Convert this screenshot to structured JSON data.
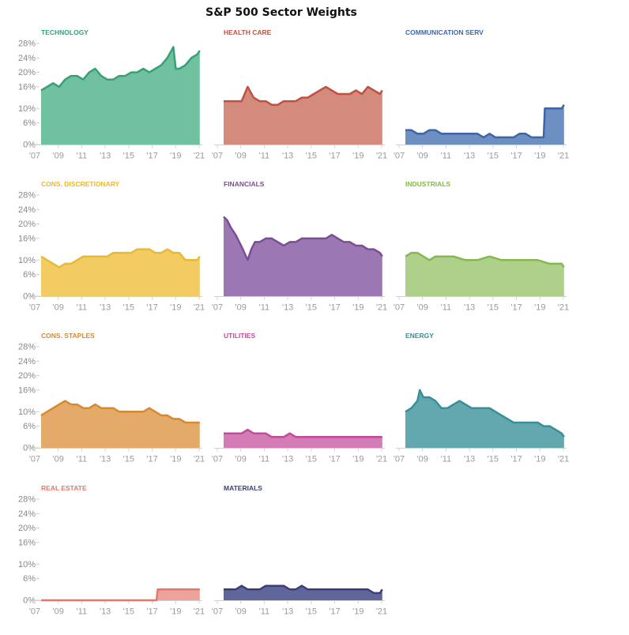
{
  "title": "S&P 500 Sector Weights",
  "chart_data": {
    "type": "area",
    "title": "S&P 500 Sector Weights",
    "ytick_labels": [
      "28%",
      "24%",
      "20%",
      "16%",
      "10%",
      "6%",
      "0%"
    ],
    "xtick_labels": [
      "'07",
      "'09",
      "'11",
      "'13",
      "'15",
      "'17",
      "'19",
      "'21"
    ],
    "xlim": [
      2007,
      2021
    ],
    "ylim": [
      0,
      28
    ],
    "grid": false,
    "panels": [
      {
        "name": "TECHNOLOGY",
        "color": "#3a9e77",
        "fill": "#6fc1a0",
        "x": [
          2007,
          2007.5,
          2008,
          2008.5,
          2009,
          2009.5,
          2010,
          2010.5,
          2011,
          2011.5,
          2012,
          2012.5,
          2013,
          2013.5,
          2014,
          2014.5,
          2015,
          2015.5,
          2016,
          2016.5,
          2017,
          2017.5,
          2018,
          2018.2,
          2018.5,
          2019,
          2019.5,
          2020,
          2020.2
        ],
        "y": [
          15,
          16,
          17,
          16,
          18,
          19,
          19,
          18,
          20,
          21,
          19,
          18,
          18,
          19,
          19,
          20,
          20,
          21,
          20,
          21,
          22,
          24,
          27,
          21,
          21,
          22,
          24,
          25,
          26
        ]
      },
      {
        "name": "HEALTH CARE",
        "color": "#c0513f",
        "fill": "#d48a7c",
        "x": [
          2007,
          2007.5,
          2008,
          2008.5,
          2009,
          2009.5,
          2010,
          2010.5,
          2011,
          2011.5,
          2012,
          2012.5,
          2013,
          2013.5,
          2014,
          2014.5,
          2015,
          2015.5,
          2016,
          2016.5,
          2017,
          2017.5,
          2018,
          2018.5,
          2019,
          2019.5,
          2020,
          2020.2
        ],
        "y": [
          12,
          12,
          12,
          12,
          16,
          13,
          12,
          12,
          11,
          11,
          12,
          12,
          12,
          13,
          13,
          14,
          15,
          16,
          15,
          14,
          14,
          14,
          15,
          14,
          16,
          15,
          14,
          15
        ]
      },
      {
        "name": "COMMUNICATION SERV",
        "color": "#3d66a8",
        "fill": "#6d8fc2",
        "x": [
          2007,
          2007.5,
          2008,
          2008.5,
          2009,
          2009.5,
          2010,
          2011,
          2012,
          2013,
          2013.5,
          2014,
          2014.5,
          2015,
          2016,
          2016.5,
          2017,
          2017.5,
          2018,
          2018.5,
          2018.6,
          2019,
          2019.5,
          2020,
          2020.2
        ],
        "y": [
          4,
          4,
          3,
          3,
          4,
          4,
          3,
          3,
          3,
          3,
          2,
          3,
          2,
          2,
          2,
          3,
          3,
          2,
          2,
          2,
          10,
          10,
          10,
          10,
          11
        ]
      },
      {
        "name": "CONS. DISCRETIONARY",
        "color": "#e8b935",
        "fill": "#f2cc63",
        "x": [
          2007,
          2007.5,
          2008,
          2008.5,
          2009,
          2009.5,
          2010,
          2010.5,
          2011,
          2011.5,
          2012,
          2012.5,
          2013,
          2013.5,
          2014,
          2014.5,
          2015,
          2015.5,
          2016,
          2016.5,
          2017,
          2017.5,
          2018,
          2018.5,
          2019,
          2019.5,
          2020,
          2020.2
        ],
        "y": [
          11,
          10,
          9,
          8,
          9,
          9,
          10,
          11,
          11,
          11,
          11,
          11,
          12,
          12,
          12,
          12,
          13,
          13,
          13,
          12,
          12,
          13,
          12,
          12,
          10,
          10,
          10,
          11
        ]
      },
      {
        "name": "FINANCIALS",
        "color": "#7a4d94",
        "fill": "#9b78b3",
        "x": [
          2007,
          2007.3,
          2007.6,
          2008,
          2008.3,
          2008.6,
          2009,
          2009.3,
          2009.6,
          2010,
          2010.5,
          2011,
          2011.5,
          2012,
          2012.5,
          2013,
          2013.5,
          2014,
          2014.5,
          2015,
          2015.5,
          2016,
          2016.5,
          2017,
          2017.5,
          2018,
          2018.5,
          2019,
          2019.5,
          2020,
          2020.2
        ],
        "y": [
          22,
          21,
          19,
          17,
          15,
          13,
          10,
          13,
          15,
          15,
          16,
          16,
          15,
          14,
          15,
          15,
          16,
          16,
          16,
          16,
          16,
          17,
          16,
          15,
          15,
          14,
          14,
          13,
          13,
          12,
          11
        ]
      },
      {
        "name": "INDUSTRIALS",
        "color": "#86b84f",
        "fill": "#aed08a",
        "x": [
          2007,
          2007.5,
          2008,
          2008.5,
          2009,
          2009.5,
          2010,
          2011,
          2012,
          2013,
          2014,
          2015,
          2016,
          2017,
          2018,
          2019,
          2019.5,
          2020,
          2020.2
        ],
        "y": [
          11,
          12,
          12,
          11,
          10,
          11,
          11,
          11,
          10,
          10,
          11,
          10,
          10,
          10,
          10,
          9,
          9,
          9,
          8
        ]
      },
      {
        "name": "CONS. STAPLES",
        "color": "#d9892d",
        "fill": "#e3aa6a",
        "x": [
          2007,
          2007.5,
          2008,
          2008.5,
          2009,
          2009.5,
          2010,
          2010.5,
          2011,
          2011.5,
          2012,
          2012.5,
          2013,
          2013.5,
          2014,
          2014.5,
          2015,
          2015.5,
          2016,
          2016.5,
          2017,
          2017.5,
          2018,
          2018.5,
          2019,
          2019.5,
          2020,
          2020.2
        ],
        "y": [
          9,
          10,
          11,
          12,
          13,
          12,
          12,
          11,
          11,
          12,
          11,
          11,
          11,
          10,
          10,
          10,
          10,
          10,
          11,
          10,
          9,
          9,
          8,
          8,
          7,
          7,
          7,
          7
        ]
      },
      {
        "name": "UTILITIES",
        "color": "#c34a9c",
        "fill": "#d47cb6",
        "x": [
          2007,
          2007.5,
          2008,
          2008.5,
          2009,
          2009.5,
          2010,
          2010.5,
          2011,
          2012,
          2012.5,
          2013,
          2014,
          2015,
          2016,
          2017,
          2018,
          2018.5,
          2019,
          2019.5,
          2020,
          2020.2
        ],
        "y": [
          4,
          4,
          4,
          4,
          5,
          4,
          4,
          4,
          3,
          3,
          4,
          3,
          3,
          3,
          3,
          3,
          3,
          3,
          3,
          3,
          3,
          3
        ]
      },
      {
        "name": "ENERGY",
        "color": "#378f9a",
        "fill": "#63a7af",
        "x": [
          2007,
          2007.5,
          2008,
          2008.2,
          2008.5,
          2009,
          2009.5,
          2010,
          2010.5,
          2011,
          2011.5,
          2012,
          2012.5,
          2013,
          2013.5,
          2014,
          2014.5,
          2015,
          2015.5,
          2016,
          2016.5,
          2017,
          2017.5,
          2018,
          2018.5,
          2019,
          2019.5,
          2020,
          2020.2
        ],
        "y": [
          10,
          11,
          13,
          16,
          14,
          14,
          13,
          11,
          11,
          12,
          13,
          12,
          11,
          11,
          11,
          11,
          10,
          9,
          8,
          7,
          7,
          7,
          7,
          7,
          6,
          6,
          5,
          4,
          3
        ]
      },
      {
        "name": "REAL ESTATE",
        "color": "#e8766c",
        "fill": "#eda29a",
        "x": [
          2007,
          2008,
          2009,
          2010,
          2011,
          2012,
          2013,
          2014,
          2015,
          2016,
          2016.6,
          2016.7,
          2017,
          2018,
          2019,
          2020,
          2020.2
        ],
        "y": [
          0,
          0,
          0,
          0,
          0,
          0,
          0,
          0,
          0,
          0,
          0,
          3,
          3,
          3,
          3,
          3,
          3
        ]
      },
      {
        "name": "MATERIALS",
        "color": "#3a3f7a",
        "fill": "#61669a",
        "x": [
          2007,
          2007.5,
          2008,
          2008.5,
          2009,
          2009.5,
          2010,
          2010.5,
          2011,
          2011.5,
          2012,
          2012.5,
          2013,
          2013.5,
          2014,
          2014.5,
          2015,
          2016,
          2017,
          2018,
          2019,
          2019.5,
          2020,
          2020.2
        ],
        "y": [
          3,
          3,
          3,
          4,
          3,
          3,
          3,
          4,
          4,
          4,
          4,
          3,
          3,
          4,
          3,
          3,
          3,
          3,
          3,
          3,
          3,
          2,
          2,
          3
        ]
      }
    ]
  }
}
